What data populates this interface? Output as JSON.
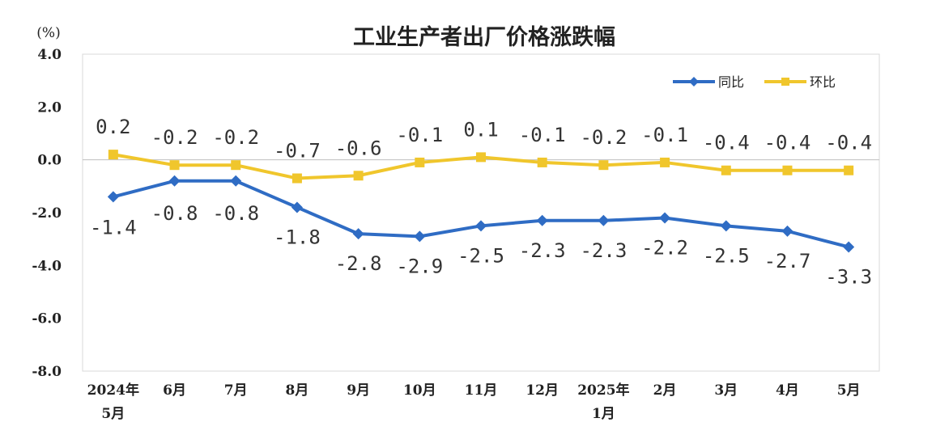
{
  "chart_data": {
    "type": "line",
    "title": "工业生产者出厂价格涨跌幅",
    "unit_label": "(%)",
    "xlabel": "",
    "ylabel": "",
    "ylim": [
      -8.0,
      4.0
    ],
    "y_ticks": [
      "4.0",
      "2.0",
      "0.0",
      "-2.0",
      "-4.0",
      "-6.0",
      "-8.0"
    ],
    "y_tick_values": [
      4.0,
      2.0,
      0.0,
      -2.0,
      -4.0,
      -6.0,
      -8.0
    ],
    "categories": [
      [
        "2024年",
        "5月"
      ],
      [
        "6月"
      ],
      [
        "7月"
      ],
      [
        "8月"
      ],
      [
        "9月"
      ],
      [
        "10月"
      ],
      [
        "11月"
      ],
      [
        "12月"
      ],
      [
        "2025年",
        "1月"
      ],
      [
        "2月"
      ],
      [
        "3月"
      ],
      [
        "4月"
      ],
      [
        "5月"
      ]
    ],
    "legend_position": "top-right",
    "grid": false,
    "series": [
      {
        "name": "同比",
        "color": "#2f6cc4",
        "marker": "diamond",
        "values": [
          -1.4,
          -0.8,
          -0.8,
          -1.8,
          -2.8,
          -2.9,
          -2.5,
          -2.3,
          -2.3,
          -2.2,
          -2.5,
          -2.7,
          -3.3
        ],
        "labels": [
          "-1.4",
          "-0.8",
          "-0.8",
          "-1.8",
          "-2.8",
          "-2.9",
          "-2.5",
          "-2.3",
          "-2.3",
          "-2.2",
          "-2.5",
          "-2.7",
          "-3.3"
        ]
      },
      {
        "name": "环比",
        "color": "#f0c62c",
        "marker": "square",
        "values": [
          0.2,
          -0.2,
          -0.2,
          -0.7,
          -0.6,
          -0.1,
          0.1,
          -0.1,
          -0.2,
          -0.1,
          -0.4,
          -0.4,
          -0.4
        ],
        "labels": [
          "0.2",
          "-0.2",
          "-0.2",
          "-0.7",
          "-0.6",
          "-0.1",
          "0.1",
          "-0.1",
          "-0.2",
          "-0.1",
          "-0.4",
          "-0.4",
          "-0.4"
        ]
      }
    ]
  }
}
